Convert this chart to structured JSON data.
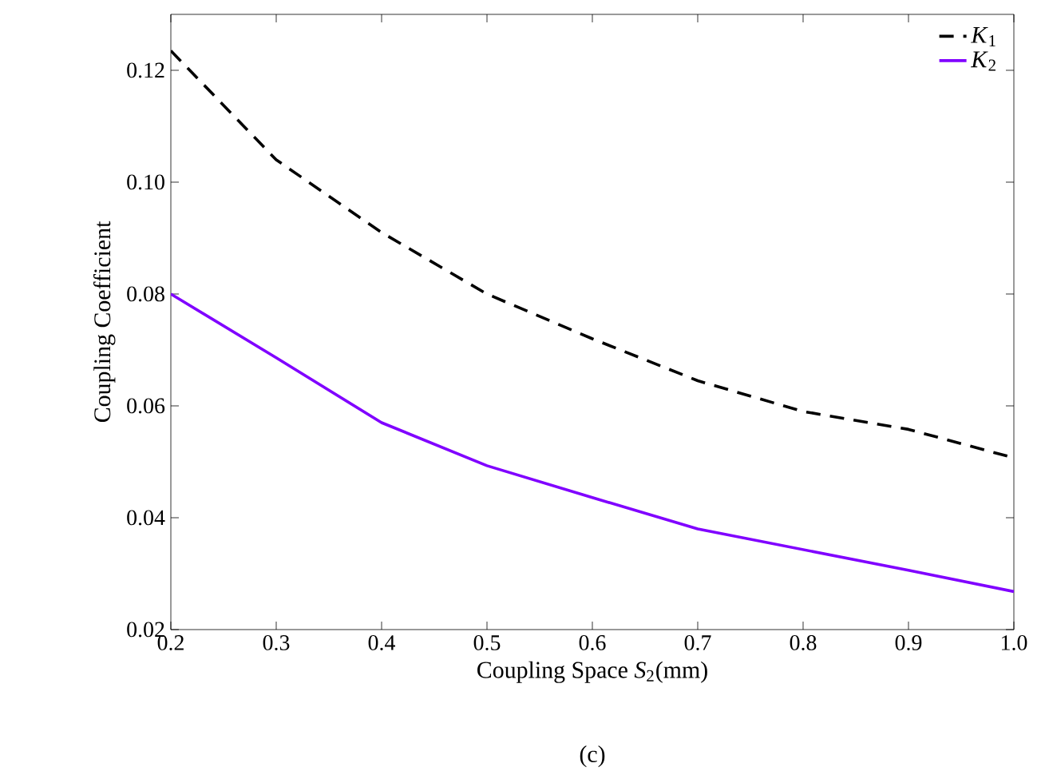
{
  "chart_data": {
    "type": "line",
    "xlabel": "Coupling Space *S*$_{2}$(mm)",
    "ylabel": "Coupling Coefficient",
    "annotations": [
      "(c)"
    ],
    "x": [
      0.2,
      0.3,
      0.4,
      0.5,
      0.6,
      0.7,
      0.8,
      0.9,
      1.0
    ],
    "series": [
      {
        "name": "*K*$_{1}$",
        "color": "#000000",
        "line_style": "dashed",
        "values": [
          0.1235,
          0.104,
          0.091,
          0.08,
          0.072,
          0.0645,
          0.059,
          0.0558,
          0.0507
        ]
      },
      {
        "name": "*K*$_{2}$",
        "color": "#8000ff",
        "line_style": "solid",
        "values": [
          0.08,
          0.0686,
          0.057,
          0.0493,
          0.0436,
          0.038,
          0.0343,
          0.0306,
          0.0268
        ]
      }
    ],
    "xlim": [
      0.2,
      1.0
    ],
    "ylim": [
      0.02,
      0.13
    ],
    "xticks": [
      {
        "value": 0.2,
        "label": "0.2"
      },
      {
        "value": 0.3,
        "label": "0.3"
      },
      {
        "value": 0.4,
        "label": "0.4"
      },
      {
        "value": 0.5,
        "label": "0.5"
      },
      {
        "value": 0.6,
        "label": "0.6"
      },
      {
        "value": 0.7,
        "label": "0.7"
      },
      {
        "value": 0.8,
        "label": "0.8"
      },
      {
        "value": 0.9,
        "label": "0.9"
      },
      {
        "value": 1.0,
        "label": "1.0"
      }
    ],
    "yticks": [
      {
        "value": 0.02,
        "label": "0.02"
      },
      {
        "value": 0.04,
        "label": "0.04"
      },
      {
        "value": 0.06,
        "label": "0.06"
      },
      {
        "value": 0.08,
        "label": "0.08"
      },
      {
        "value": 0.1,
        "label": "0.10"
      },
      {
        "value": 0.12,
        "label": "0.12"
      }
    ],
    "grid": false,
    "legend": "top right",
    "marker": "none"
  }
}
